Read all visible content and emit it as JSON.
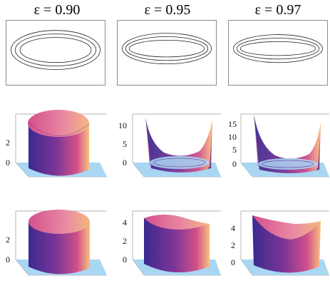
{
  "columns": [
    {
      "header": "ε = 0.90",
      "row2_ticks": [
        "0",
        "2"
      ],
      "row3_ticks": [
        "0",
        "2"
      ]
    },
    {
      "header": "ε = 0.95",
      "row2_ticks": [
        "0",
        "5",
        "10"
      ],
      "row3_ticks": [
        "0",
        "2",
        "4"
      ]
    },
    {
      "header": "ε = 0.97",
      "row2_ticks": [
        "0",
        "5",
        "10",
        "15"
      ],
      "row3_ticks": [
        "0",
        "2",
        "4"
      ]
    }
  ],
  "colors": {
    "floor": "#a9d6f2",
    "surface_dark": "#3b2a8f",
    "surface_mid": "#b03a8a",
    "surface_light": "#f7c07e",
    "contour": "#222222",
    "box": "#9a9a9a"
  }
}
